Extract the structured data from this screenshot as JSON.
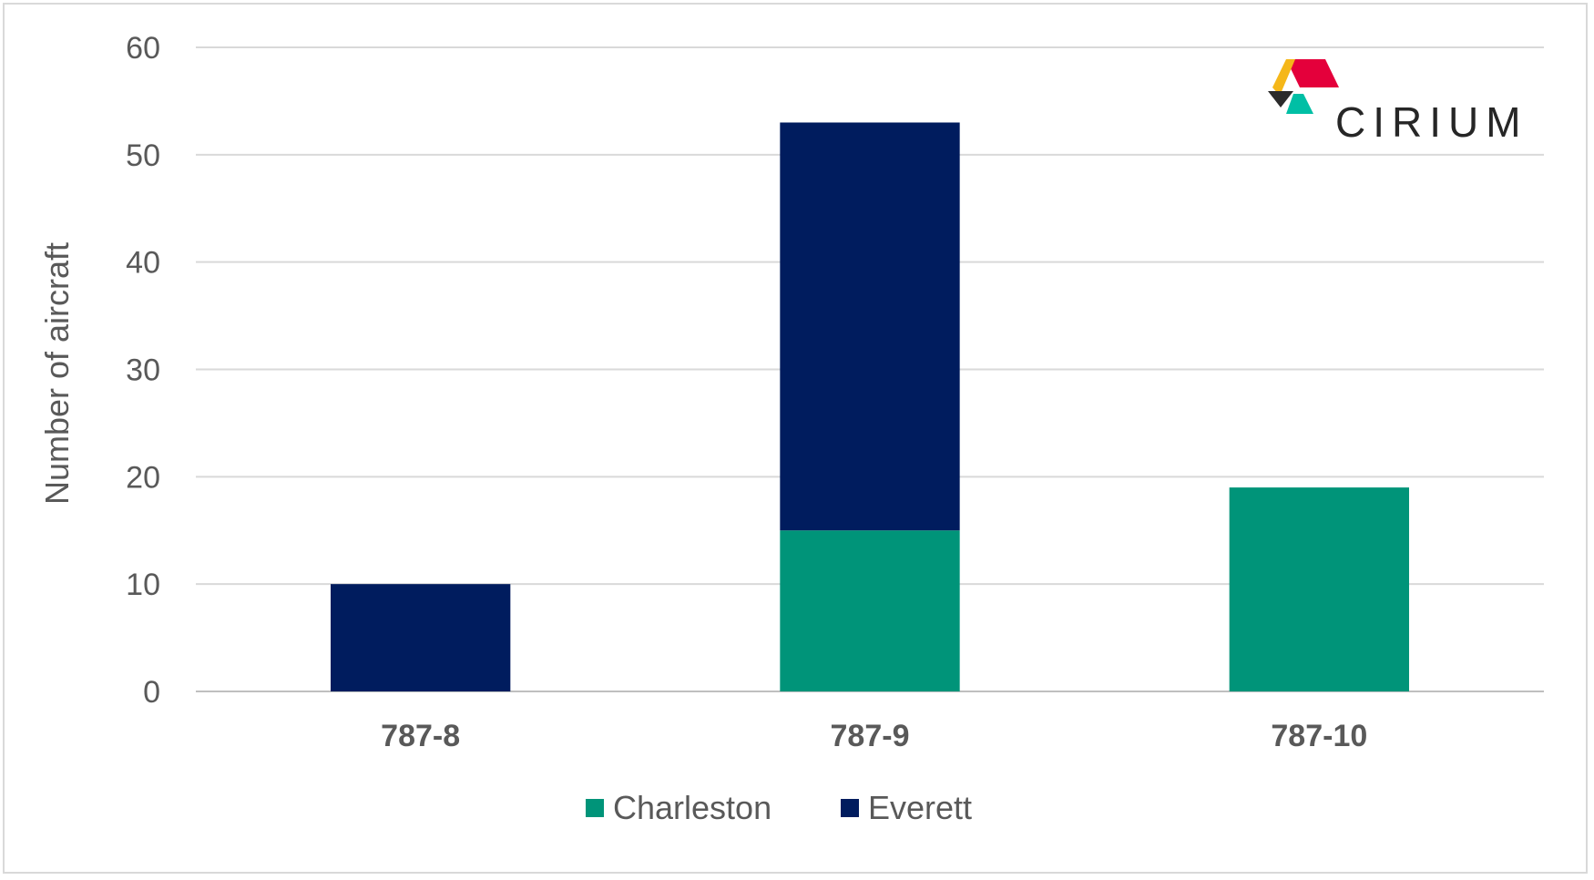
{
  "chart_data": {
    "type": "bar",
    "stacked": true,
    "categories": [
      "787-8",
      "787-9",
      "787-10"
    ],
    "series": [
      {
        "name": "Charleston",
        "color": "#009479",
        "values": [
          0,
          15,
          19
        ]
      },
      {
        "name": "Everett",
        "color": "#001c5e",
        "values": [
          10,
          38,
          0
        ]
      }
    ],
    "ylabel": "Number of aircraft",
    "ylim": [
      0,
      60
    ],
    "yticks": [
      0,
      10,
      20,
      30,
      40,
      50,
      60
    ],
    "grid": true,
    "legend": "bottom"
  },
  "logo": {
    "text": "CIRIUM",
    "colors": [
      "#e4003b",
      "#f5b719",
      "#00bfa5",
      "#2b2b2b"
    ]
  }
}
